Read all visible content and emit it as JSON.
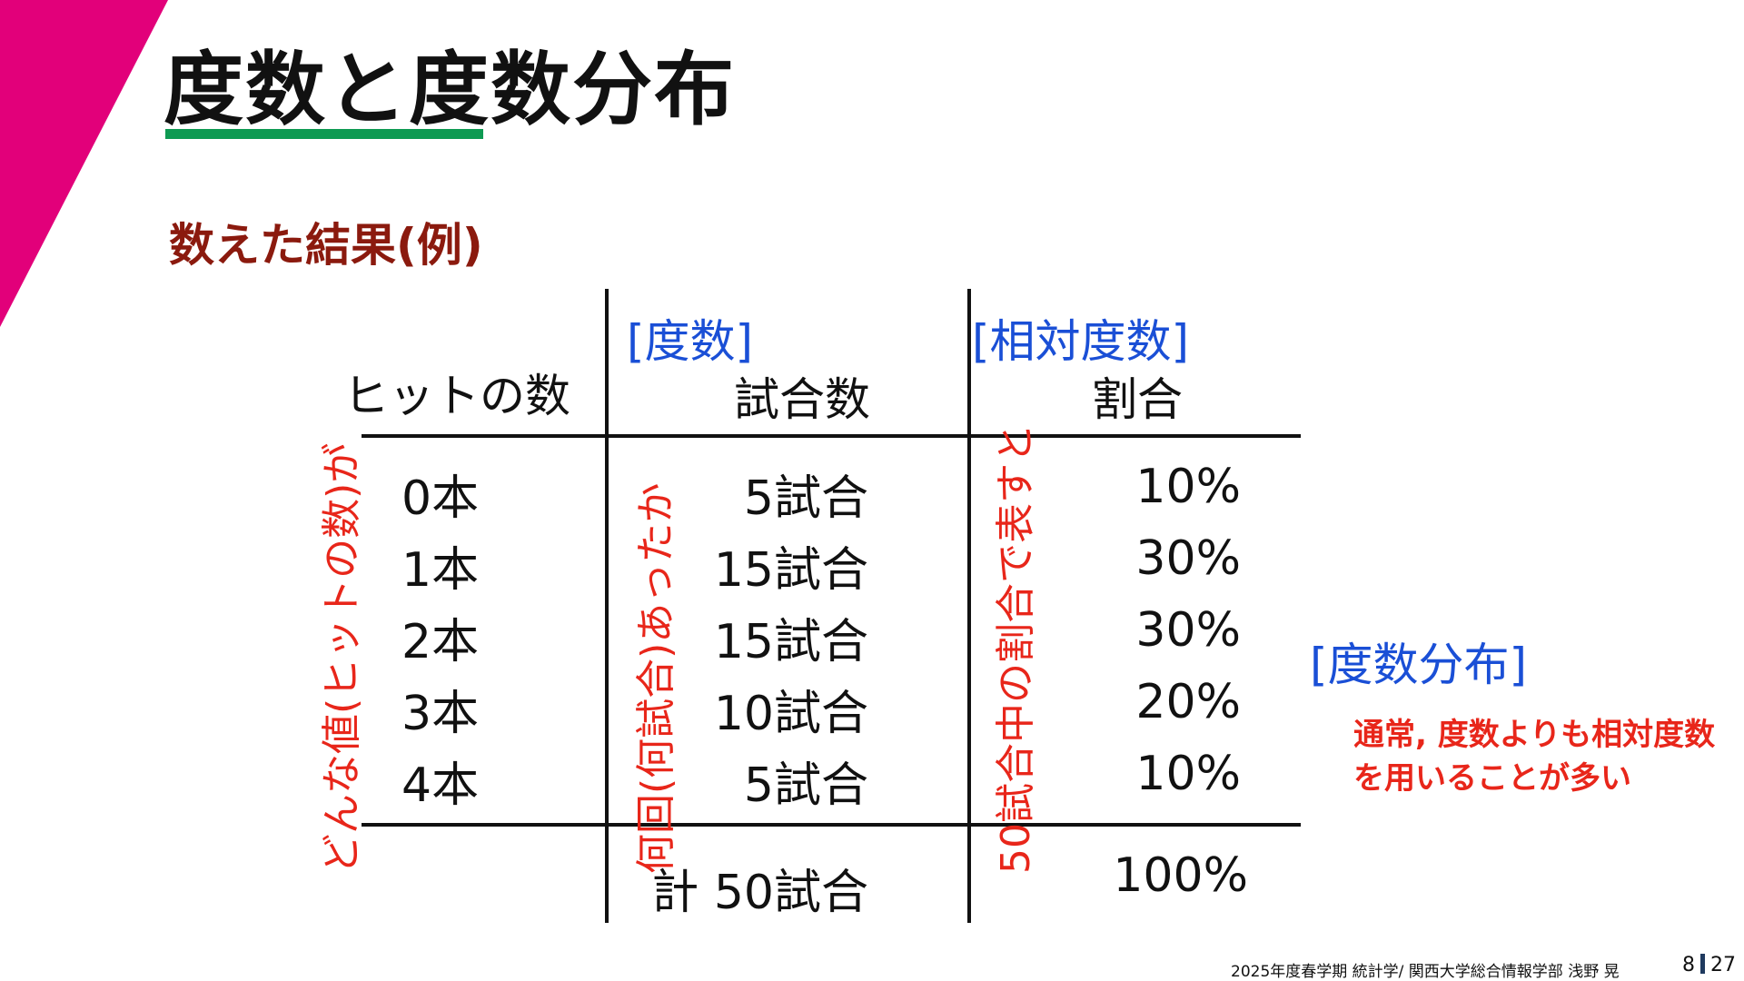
{
  "slide": {
    "title": "度数と度数分布",
    "subtitle": "数えた結果(例)",
    "accent_colors": {
      "corner": "#e2007a",
      "title_underline": "#0e9a52",
      "subtitle": "#8b1a0e",
      "bracket_labels": "#1a4fd6",
      "annotations": "#e8261a"
    }
  },
  "table": {
    "labels": {
      "frequency": "[度数]",
      "relative_frequency": "[相対度数]",
      "distribution": "[度数分布]"
    },
    "headers": {
      "hits": "ヒットの数",
      "games": "試合数",
      "ratio": "割合"
    },
    "rows": [
      {
        "hits": "0本",
        "games": "5試合",
        "ratio": "10%"
      },
      {
        "hits": "1本",
        "games": "15試合",
        "ratio": "30%"
      },
      {
        "hits": "2本",
        "games": "15試合",
        "ratio": "30%"
      },
      {
        "hits": "3本",
        "games": "10試合",
        "ratio": "20%"
      },
      {
        "hits": "4本",
        "games": "5試合",
        "ratio": "10%"
      }
    ],
    "total": {
      "games": "計 50試合",
      "ratio": "100%"
    }
  },
  "annotations": {
    "values": "どんな値(ヒットの数)が",
    "counts": "何回(何試合)あったか",
    "ratios": "50試合中の割合で表すと",
    "note_line1": "通常, 度数よりも相対度数",
    "note_line2": "を用いることが多い"
  },
  "footer": {
    "course": "2025年度春学期 統計学/ 関西大学総合情報学部 浅野 晃",
    "page_current": "8",
    "page_total": "27"
  }
}
